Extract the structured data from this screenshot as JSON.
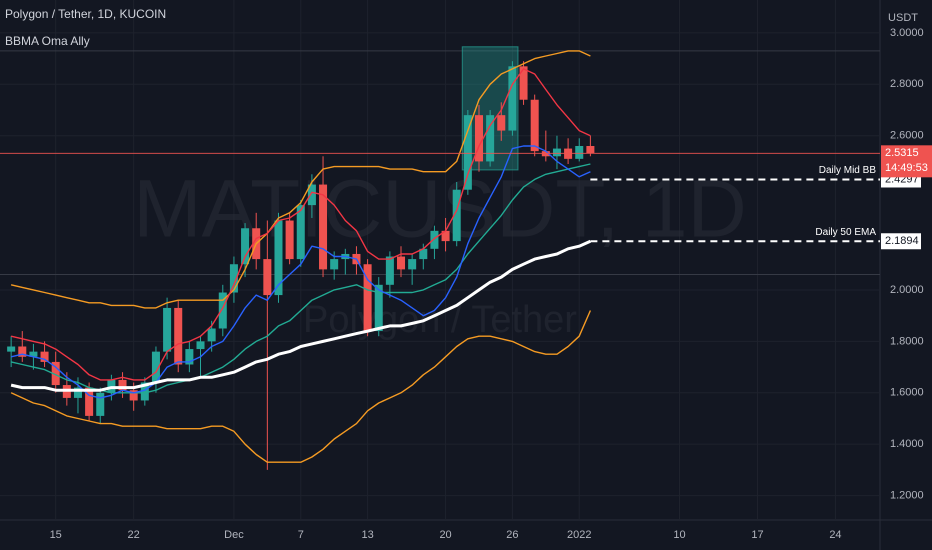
{
  "chart_data": {
    "type": "candlestick",
    "title": "Polygon / Tether, 1D, KUCOIN",
    "subtitle": "BBMA Oma Ally",
    "watermark": [
      "MATICUSDT, 1D",
      "Polygon / Tether"
    ],
    "currency": "USDT",
    "countdown": "14:49:53",
    "up_color": "#26a69a",
    "down_color": "#ef5350",
    "x": [
      "2021-11-11",
      "2021-11-12",
      "2021-11-13",
      "2021-11-14",
      "2021-11-15",
      "2021-11-16",
      "2021-11-17",
      "2021-11-18",
      "2021-11-19",
      "2021-11-20",
      "2021-11-21",
      "2021-11-22",
      "2021-11-23",
      "2021-11-24",
      "2021-11-25",
      "2021-11-26",
      "2021-11-27",
      "2021-11-28",
      "2021-11-29",
      "2021-11-30",
      "2021-12-01",
      "2021-12-02",
      "2021-12-03",
      "2021-12-04",
      "2021-12-05",
      "2021-12-06",
      "2021-12-07",
      "2021-12-08",
      "2021-12-09",
      "2021-12-10",
      "2021-12-11",
      "2021-12-12",
      "2021-12-13",
      "2021-12-14",
      "2021-12-15",
      "2021-12-16",
      "2021-12-17",
      "2021-12-18",
      "2021-12-19",
      "2021-12-20",
      "2021-12-21",
      "2021-12-22",
      "2021-12-23",
      "2021-12-24",
      "2021-12-25",
      "2021-12-26",
      "2021-12-27",
      "2021-12-28",
      "2021-12-29",
      "2021-12-30",
      "2021-12-31",
      "2022-01-01",
      "2022-01-02"
    ],
    "open": [
      1.76,
      1.78,
      1.74,
      1.76,
      1.72,
      1.63,
      1.58,
      1.62,
      1.51,
      1.6,
      1.65,
      1.61,
      1.57,
      1.64,
      1.76,
      1.93,
      1.71,
      1.77,
      1.8,
      1.85,
      1.99,
      2.1,
      2.24,
      2.12,
      1.98,
      2.27,
      2.12,
      2.33,
      2.41,
      2.08,
      2.12,
      2.14,
      2.1,
      1.84,
      2.02,
      2.13,
      2.08,
      2.12,
      2.16,
      2.23,
      2.19,
      2.39,
      2.68,
      2.5,
      2.68,
      2.62,
      2.87,
      2.74,
      2.54,
      2.52,
      2.55,
      2.51,
      2.56
    ],
    "high": [
      1.82,
      1.84,
      1.79,
      1.8,
      1.76,
      1.68,
      1.66,
      1.64,
      1.62,
      1.67,
      1.68,
      1.64,
      1.66,
      1.78,
      1.97,
      1.96,
      1.8,
      1.82,
      1.88,
      2.02,
      2.13,
      2.26,
      2.3,
      2.27,
      2.3,
      2.3,
      2.35,
      2.45,
      2.52,
      2.15,
      2.16,
      2.17,
      2.12,
      2.05,
      2.15,
      2.17,
      2.14,
      2.18,
      2.25,
      2.28,
      2.42,
      2.7,
      2.72,
      2.7,
      2.73,
      2.89,
      2.89,
      2.76,
      2.62,
      2.6,
      2.59,
      2.59,
      2.6
    ],
    "low": [
      1.7,
      1.72,
      1.69,
      1.7,
      1.6,
      1.55,
      1.52,
      1.49,
      1.48,
      1.57,
      1.58,
      1.53,
      1.55,
      1.6,
      1.73,
      1.68,
      1.68,
      1.66,
      1.76,
      1.82,
      1.95,
      2.05,
      2.08,
      1.3,
      1.95,
      2.1,
      2.09,
      2.28,
      2.05,
      2.04,
      2.06,
      2.06,
      1.82,
      1.82,
      1.97,
      2.05,
      2.02,
      2.08,
      2.12,
      2.15,
      2.17,
      2.37,
      2.46,
      2.48,
      2.58,
      2.6,
      2.72,
      2.52,
      2.5,
      2.47,
      2.49,
      2.5,
      2.52
    ],
    "close": [
      1.78,
      1.74,
      1.76,
      1.72,
      1.63,
      1.58,
      1.62,
      1.51,
      1.6,
      1.65,
      1.61,
      1.57,
      1.64,
      1.76,
      1.93,
      1.71,
      1.77,
      1.8,
      1.85,
      1.99,
      2.1,
      2.24,
      2.12,
      1.98,
      2.27,
      2.12,
      2.33,
      2.41,
      2.08,
      2.12,
      2.14,
      2.1,
      1.84,
      2.02,
      2.13,
      2.08,
      2.12,
      2.16,
      2.23,
      2.19,
      2.39,
      2.68,
      2.5,
      2.68,
      2.62,
      2.87,
      2.74,
      2.54,
      2.52,
      2.55,
      2.51,
      2.56,
      2.5315
    ],
    "indicators": [
      {
        "color": "#f59b23",
        "values": [
          2.02,
          2.01,
          2.0,
          1.99,
          1.98,
          1.97,
          1.96,
          1.95,
          1.95,
          1.94,
          1.94,
          1.94,
          1.93,
          1.93,
          1.95,
          1.96,
          1.96,
          1.96,
          1.96,
          1.96,
          2.0,
          2.08,
          2.18,
          2.22,
          2.28,
          2.3,
          2.34,
          2.42,
          2.47,
          2.48,
          2.48,
          2.48,
          2.48,
          2.48,
          2.47,
          2.47,
          2.47,
          2.46,
          2.46,
          2.46,
          2.5,
          2.62,
          2.74,
          2.8,
          2.84,
          2.86,
          2.88,
          2.9,
          2.91,
          2.92,
          2.93,
          2.93,
          2.91
        ]
      },
      {
        "color": "#f59b23",
        "values": [
          1.6,
          1.58,
          1.56,
          1.55,
          1.53,
          1.51,
          1.5,
          1.49,
          1.48,
          1.48,
          1.47,
          1.47,
          1.47,
          1.47,
          1.46,
          1.46,
          1.46,
          1.46,
          1.47,
          1.47,
          1.45,
          1.4,
          1.36,
          1.33,
          1.33,
          1.33,
          1.33,
          1.35,
          1.38,
          1.42,
          1.45,
          1.48,
          1.53,
          1.56,
          1.58,
          1.6,
          1.63,
          1.67,
          1.7,
          1.74,
          1.78,
          1.81,
          1.82,
          1.82,
          1.81,
          1.8,
          1.78,
          1.76,
          1.75,
          1.75,
          1.78,
          1.82,
          1.92
        ]
      },
      {
        "color": "#f23645",
        "values": [
          1.82,
          1.81,
          1.8,
          1.79,
          1.77,
          1.74,
          1.71,
          1.67,
          1.65,
          1.65,
          1.66,
          1.65,
          1.65,
          1.68,
          1.76,
          1.79,
          1.8,
          1.82,
          1.86,
          1.93,
          2.02,
          2.13,
          2.2,
          2.22,
          2.27,
          2.28,
          2.31,
          2.38,
          2.37,
          2.33,
          2.27,
          2.23,
          2.15,
          2.12,
          2.12,
          2.14,
          2.14,
          2.16,
          2.2,
          2.23,
          2.31,
          2.45,
          2.56,
          2.64,
          2.7,
          2.8,
          2.86,
          2.84,
          2.78,
          2.72,
          2.67,
          2.62,
          2.6
        ]
      },
      {
        "color": "#22ab94",
        "values": [
          1.72,
          1.71,
          1.7,
          1.69,
          1.67,
          1.65,
          1.64,
          1.62,
          1.61,
          1.6,
          1.6,
          1.6,
          1.6,
          1.61,
          1.63,
          1.64,
          1.65,
          1.66,
          1.68,
          1.7,
          1.73,
          1.77,
          1.8,
          1.82,
          1.86,
          1.88,
          1.92,
          1.96,
          1.98,
          2.0,
          2.01,
          2.02,
          2.0,
          1.99,
          1.99,
          1.99,
          1.99,
          2.0,
          2.02,
          2.04,
          2.08,
          2.14,
          2.19,
          2.24,
          2.29,
          2.35,
          2.4,
          2.43,
          2.45,
          2.46,
          2.47,
          2.48,
          2.49
        ]
      },
      {
        "color": "#2962ff",
        "values": [
          1.74,
          1.75,
          1.74,
          1.73,
          1.7,
          1.66,
          1.63,
          1.59,
          1.58,
          1.59,
          1.61,
          1.6,
          1.61,
          1.64,
          1.7,
          1.72,
          1.72,
          1.74,
          1.78,
          1.8,
          1.86,
          1.93,
          1.98,
          1.96,
          2.02,
          2.06,
          2.1,
          2.17,
          2.16,
          2.13,
          2.13,
          2.12,
          2.04,
          2.0,
          1.98,
          1.96,
          1.93,
          1.9,
          1.92,
          1.97,
          2.05,
          2.18,
          2.28,
          2.36,
          2.44,
          2.55,
          2.56,
          2.56,
          2.54,
          2.5,
          2.47,
          2.44,
          2.46
        ]
      },
      {
        "color": "#ffffff",
        "width": 3,
        "values": [
          1.63,
          1.62,
          1.62,
          1.62,
          1.61,
          1.61,
          1.61,
          1.61,
          1.61,
          1.62,
          1.62,
          1.62,
          1.63,
          1.64,
          1.65,
          1.65,
          1.65,
          1.66,
          1.66,
          1.67,
          1.68,
          1.7,
          1.72,
          1.73,
          1.75,
          1.76,
          1.78,
          1.79,
          1.8,
          1.81,
          1.82,
          1.83,
          1.84,
          1.85,
          1.86,
          1.86,
          1.87,
          1.88,
          1.9,
          1.92,
          1.94,
          1.97,
          2.0,
          2.03,
          2.05,
          2.08,
          2.1,
          2.12,
          2.13,
          2.14,
          2.16,
          2.17,
          2.1894
        ]
      }
    ],
    "hlines": [
      {
        "value": 2.93,
        "color": "#363a45"
      },
      {
        "value": 2.06,
        "color": "#363a45"
      }
    ],
    "highlight": {
      "x": [
        "2021-12-22",
        "2021-12-26"
      ],
      "y": [
        2.467,
        2.946
      ],
      "color": "#26a69a"
    },
    "annotations": [
      {
        "value": 2.4297,
        "label": "Daily Mid BB",
        "from": "2022-01-02"
      },
      {
        "value": 2.1894,
        "label": "Daily 50 EMA",
        "from": "2022-01-02"
      }
    ],
    "xlim": [
      "2021-11-10",
      "2022-01-28"
    ],
    "xticks": [
      {
        "value": "2021-11-15",
        "label": "15"
      },
      {
        "value": "2021-11-22",
        "label": "22"
      },
      {
        "value": "2021-12-01",
        "label": "Dec"
      },
      {
        "value": "2021-12-07",
        "label": "7"
      },
      {
        "value": "2021-12-13",
        "label": "13"
      },
      {
        "value": "2021-12-20",
        "label": "20"
      },
      {
        "value": "2021-12-26",
        "label": "26"
      },
      {
        "value": "2022-01-01",
        "label": "2022"
      },
      {
        "value": "2022-01-10",
        "label": "10"
      },
      {
        "value": "2022-01-17",
        "label": "17"
      },
      {
        "value": "2022-01-24",
        "label": "24"
      }
    ],
    "ylim": [
      1.105,
      3.128
    ],
    "yticks": [
      {
        "value": 3,
        "label": "3.0000"
      },
      {
        "value": 2.8,
        "label": "2.8000"
      },
      {
        "value": 2.6,
        "label": "2.6000"
      },
      {
        "value": 2,
        "label": "2.0000"
      },
      {
        "value": 1.8,
        "label": "1.8000"
      },
      {
        "value": 1.6,
        "label": "1.6000"
      },
      {
        "value": 1.4,
        "label": "1.4000"
      },
      {
        "value": 1.2,
        "label": "1.2000"
      }
    ],
    "grid": true
  }
}
